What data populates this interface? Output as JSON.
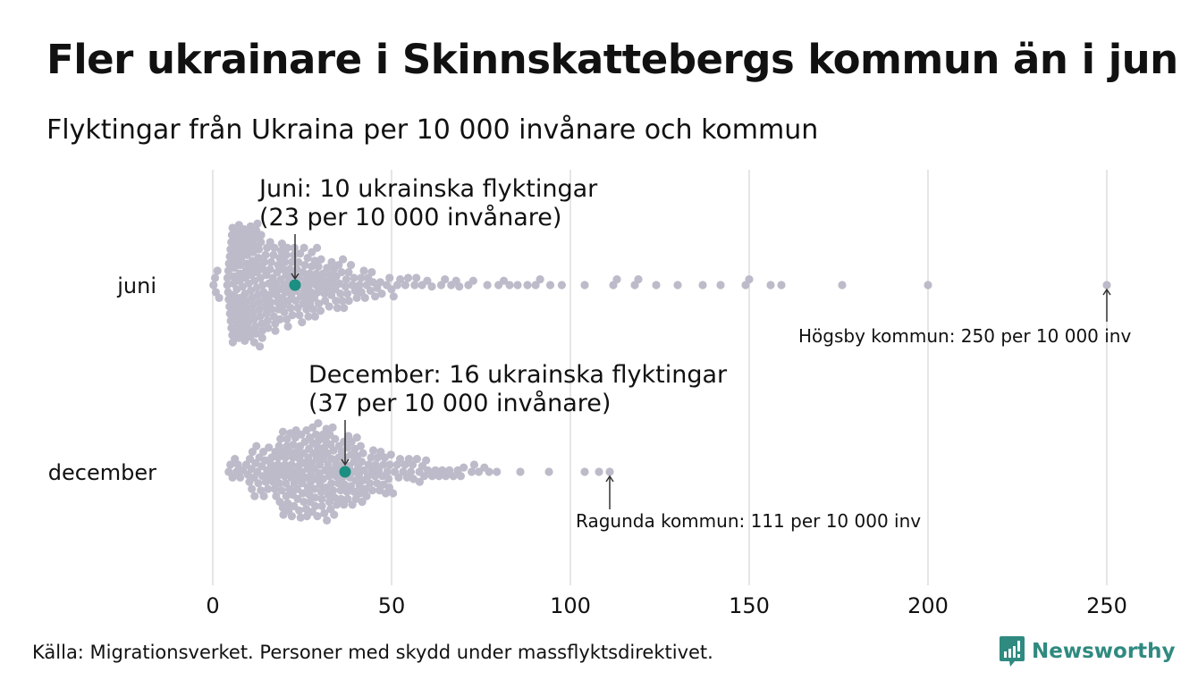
{
  "header": {
    "title": "Fler ukrainare i Skinnskattebergs kommun än i jun",
    "subtitle": "Flyktingar från Ukraina per 10 000 invånare och kommun"
  },
  "footer": {
    "source": "Källa: Migrationsverket. Personer med skydd under massflyktsdirektivet.",
    "logo_text": "Newsworthy"
  },
  "colors": {
    "dot": "#bdbbc9",
    "highlight": "#1a8f82",
    "grid": "#d4d4d4",
    "logo": "#2f8a80"
  },
  "chart_data": {
    "type": "scatter",
    "subtype": "beeswarm",
    "title": "Fler ukrainare i Skinnskattebergs kommun än i jun",
    "subtitle": "Flyktingar från Ukraina per 10 000 invånare och kommun",
    "xlabel": "",
    "ylabel": "",
    "xlim": [
      0,
      250
    ],
    "xticks": [
      0,
      50,
      100,
      150,
      200,
      250
    ],
    "xtick_labels": [
      "0",
      "50",
      "100",
      "150",
      "200",
      "250"
    ],
    "grid": "vertical",
    "categories": [
      "juni",
      "december"
    ],
    "series": [
      {
        "name": "juni",
        "highlight_value": 23,
        "distribution": {
          "dense": [
            [
              0,
              2,
              5
            ],
            [
              4,
              8,
              40
            ],
            [
              8,
              14,
              60
            ],
            [
              14,
              22,
              55
            ],
            [
              22,
              30,
              45
            ],
            [
              30,
              38,
              30
            ],
            [
              38,
              46,
              18
            ],
            [
              46,
              55,
              10
            ],
            [
              55,
              70,
              10
            ],
            [
              70,
              80,
              4
            ],
            [
              80,
              98,
              8
            ]
          ],
          "sparse": [
            104,
            112,
            113,
            118,
            119,
            124,
            130,
            137,
            142,
            149,
            150,
            156,
            159,
            176,
            200,
            250
          ]
        }
      },
      {
        "name": "december",
        "highlight_value": 37,
        "distribution": {
          "dense": [
            [
              4,
              10,
              10
            ],
            [
              10,
              18,
              30
            ],
            [
              18,
              26,
              55
            ],
            [
              26,
              34,
              60
            ],
            [
              34,
              42,
              45
            ],
            [
              42,
              50,
              28
            ],
            [
              50,
              60,
              18
            ],
            [
              60,
              70,
              10
            ],
            [
              70,
              80,
              7
            ]
          ],
          "sparse": [
            86,
            94,
            104,
            108,
            111
          ]
        }
      }
    ],
    "annotations": [
      {
        "series": "juni",
        "line1": "Juni: 10 ukrainska flyktingar",
        "line2": "(23 per 10 000 invånare)",
        "x": 23
      },
      {
        "series": "juni",
        "text": "Högsby kommun: 250 per 10 000 inv",
        "x": 250
      },
      {
        "series": "december",
        "line1": "December: 16 ukrainska flyktingar",
        "line2": "(37 per 10 000 invånare)",
        "x": 37
      },
      {
        "series": "december",
        "text": "Ragunda kommun: 111 per 10 000 inv",
        "x": 111
      }
    ]
  }
}
